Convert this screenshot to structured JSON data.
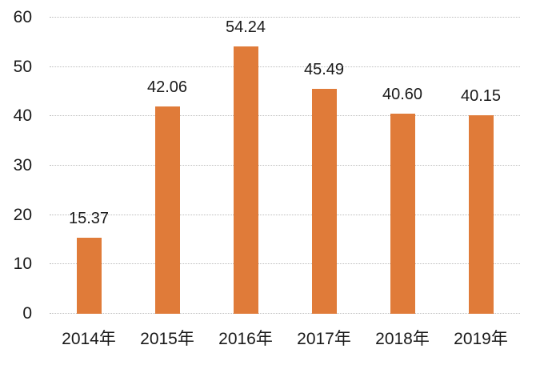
{
  "chart_data": {
    "type": "bar",
    "title": "",
    "xlabel": "",
    "ylabel": "",
    "categories": [
      "2014年",
      "2015年",
      "2016年",
      "2017年",
      "2018年",
      "2019年"
    ],
    "values": [
      15.37,
      42.06,
      54.24,
      45.49,
      40.6,
      40.15
    ],
    "data_labels": [
      "15.37",
      "42.06",
      "54.24",
      "45.49",
      "40.60",
      "40.15"
    ],
    "y_ticks": [
      0,
      10,
      20,
      30,
      40,
      50,
      60
    ],
    "ylim": [
      0,
      60
    ],
    "grid": "horizontal-dotted",
    "legend": "none",
    "bar_color": "#e07b39",
    "text_color": "#1a1a1a",
    "gridline_color": "#bdbdbd",
    "background_color": "#ffffff"
  }
}
